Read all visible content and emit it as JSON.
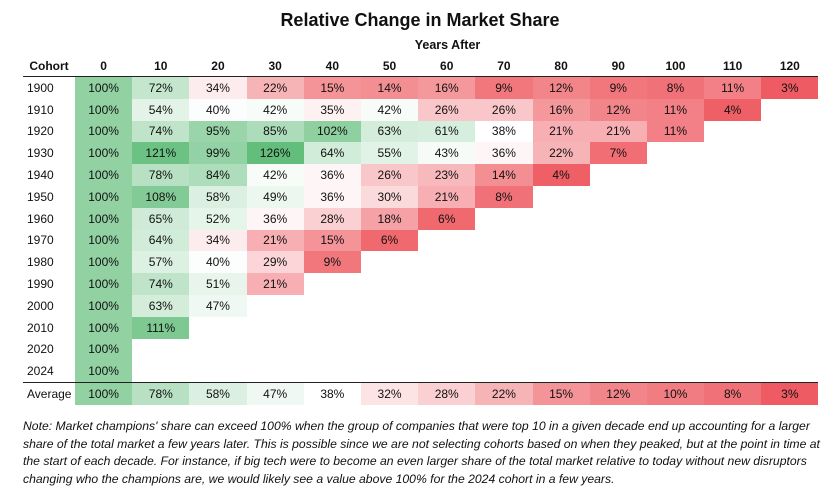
{
  "chart_data": {
    "type": "heatmap",
    "title": "Relative Change in Market Share",
    "xlabel": "Years After",
    "row_header": "Cohort",
    "columns": [
      "0",
      "10",
      "20",
      "30",
      "40",
      "50",
      "60",
      "70",
      "80",
      "90",
      "100",
      "110",
      "120"
    ],
    "rows": [
      {
        "label": "1900",
        "values": [
          100,
          72,
          34,
          22,
          15,
          14,
          16,
          9,
          12,
          9,
          8,
          11,
          3
        ]
      },
      {
        "label": "1910",
        "values": [
          100,
          54,
          40,
          42,
          35,
          42,
          26,
          26,
          16,
          12,
          11,
          4
        ]
      },
      {
        "label": "1920",
        "values": [
          100,
          74,
          95,
          85,
          102,
          63,
          61,
          38,
          21,
          21,
          11
        ]
      },
      {
        "label": "1930",
        "values": [
          100,
          121,
          99,
          126,
          64,
          55,
          43,
          36,
          22,
          7
        ]
      },
      {
        "label": "1940",
        "values": [
          100,
          78,
          84,
          42,
          36,
          26,
          23,
          14,
          4
        ]
      },
      {
        "label": "1950",
        "values": [
          100,
          108,
          58,
          49,
          36,
          30,
          21,
          8
        ]
      },
      {
        "label": "1960",
        "values": [
          100,
          65,
          52,
          36,
          28,
          18,
          6
        ]
      },
      {
        "label": "1970",
        "values": [
          100,
          64,
          34,
          21,
          15,
          6
        ]
      },
      {
        "label": "1980",
        "values": [
          100,
          57,
          40,
          29,
          9
        ]
      },
      {
        "label": "1990",
        "values": [
          100,
          74,
          51,
          21
        ]
      },
      {
        "label": "2000",
        "values": [
          100,
          63,
          47
        ]
      },
      {
        "label": "2010",
        "values": [
          100,
          111
        ]
      },
      {
        "label": "2020",
        "values": [
          100
        ]
      },
      {
        "label": "2024",
        "values": [
          100
        ]
      }
    ],
    "average": {
      "label": "Average",
      "values": [
        100,
        78,
        58,
        47,
        38,
        32,
        28,
        22,
        15,
        12,
        10,
        8,
        3
      ]
    },
    "value_suffix": "%",
    "color_scale": {
      "low": "#ee5b62",
      "mid": "#ffffff",
      "high": "#63be7b"
    }
  },
  "note": "Note: Market champions' share can exceed 100% when the group of companies that were top 10 in a given decade end up accounting for a larger share of the total market a few years later. This is possible since we are not selecting cohorts based on when they peaked, but at the point in time at the start of each decade. For instance, if big tech were to become an even larger share of the total market relative to today without new disruptors changing who the champions are, we would likely see a value above 100% for the 2024 cohort in a few years."
}
